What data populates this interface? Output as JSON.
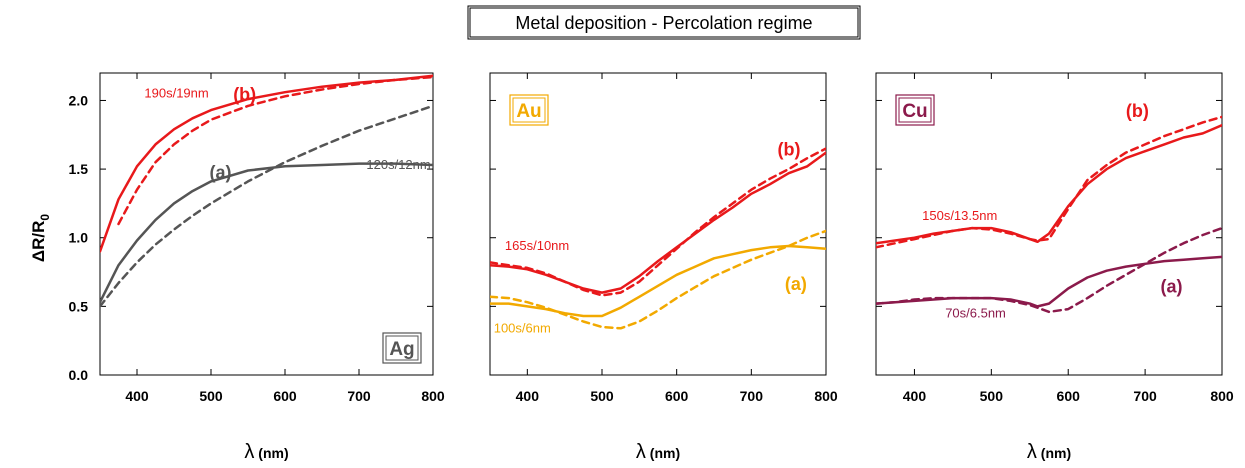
{
  "title": "Metal deposition - Percolation regime",
  "ylabel_main": "ΔR/R",
  "ylabel_sub": "0",
  "xlabel_symbol": "λ",
  "xlabel_unit": "(nm)",
  "chart_data": [
    {
      "type": "line",
      "panel_label": "Ag",
      "panel_color": "#555555",
      "xlim": [
        350,
        800
      ],
      "ylim": [
        0,
        2.2
      ],
      "xticks": [
        400,
        500,
        600,
        700,
        800
      ],
      "yticks": [
        0.0,
        0.5,
        1.0,
        1.5,
        2.0
      ],
      "yticklabels": [
        "0.0",
        "0.5",
        "1.0",
        "1.5",
        "2.0"
      ],
      "x": [
        350,
        375,
        400,
        425,
        450,
        475,
        500,
        550,
        600,
        650,
        700,
        750,
        800
      ],
      "series": [
        {
          "label": "(b)",
          "annotation": "190s/19nm",
          "color": "#e8191b",
          "style": "solid",
          "y": [
            0.9,
            1.28,
            1.52,
            1.68,
            1.79,
            1.87,
            1.93,
            2.01,
            2.06,
            2.1,
            2.13,
            2.15,
            2.18
          ]
        },
        {
          "label": "(b)",
          "color": "#e8191b",
          "style": "dashed",
          "y": [
            null,
            1.1,
            1.35,
            1.55,
            1.68,
            1.78,
            1.86,
            1.96,
            2.03,
            2.08,
            2.12,
            2.15,
            2.17
          ]
        },
        {
          "label": "(a)",
          "annotation": "120s/12nm",
          "color": "#555555",
          "style": "solid",
          "y": [
            0.53,
            0.8,
            0.98,
            1.13,
            1.25,
            1.34,
            1.41,
            1.49,
            1.52,
            1.53,
            1.54,
            1.54,
            1.53
          ]
        },
        {
          "label": "(a)",
          "color": "#555555",
          "style": "dashed",
          "y": [
            0.5,
            0.67,
            0.82,
            0.95,
            1.06,
            1.16,
            1.25,
            1.41,
            1.55,
            1.67,
            1.78,
            1.87,
            1.96
          ]
        }
      ],
      "annotations": [
        {
          "text": "190s/19nm",
          "x": 410,
          "y": 2.02,
          "color": "#e8191b"
        },
        {
          "text": "(b)",
          "x": 530,
          "y": 2.0,
          "color": "#e8191b",
          "bold": true
        },
        {
          "text": "(a)",
          "x": 498,
          "y": 1.43,
          "color": "#555555",
          "bold": true
        },
        {
          "text": "120s/12nm",
          "x": 710,
          "y": 1.5,
          "color": "#555555"
        }
      ]
    },
    {
      "type": "line",
      "panel_label": "Au",
      "panel_color": "#f2a900",
      "xlim": [
        350,
        800
      ],
      "ylim": [
        0,
        2.2
      ],
      "xticks": [
        400,
        500,
        600,
        700,
        800
      ],
      "yticks": [
        0.0,
        0.5,
        1.0,
        1.5,
        2.0
      ],
      "x": [
        350,
        375,
        400,
        425,
        450,
        475,
        500,
        525,
        550,
        575,
        600,
        625,
        650,
        675,
        700,
        725,
        750,
        775,
        800
      ],
      "series": [
        {
          "label": "(b)",
          "annotation": "165s/10nm",
          "color": "#e8191b",
          "style": "solid",
          "y": [
            0.8,
            0.79,
            0.77,
            0.73,
            0.68,
            0.63,
            0.6,
            0.63,
            0.72,
            0.83,
            0.93,
            1.03,
            1.13,
            1.22,
            1.32,
            1.39,
            1.47,
            1.52,
            1.62
          ]
        },
        {
          "label": "(b)",
          "color": "#e8191b",
          "style": "dashed",
          "y": [
            0.82,
            0.8,
            0.78,
            0.74,
            0.68,
            0.62,
            0.58,
            0.6,
            0.68,
            0.8,
            0.92,
            1.04,
            1.15,
            1.25,
            1.35,
            1.43,
            1.5,
            1.58,
            1.65
          ]
        },
        {
          "label": "(a)",
          "annotation": "100s/6nm",
          "color": "#f2a900",
          "style": "solid",
          "y": [
            0.52,
            0.52,
            0.5,
            0.48,
            0.45,
            0.43,
            0.43,
            0.49,
            0.57,
            0.65,
            0.73,
            0.79,
            0.85,
            0.88,
            0.91,
            0.93,
            0.94,
            0.93,
            0.92
          ]
        },
        {
          "label": "(a)",
          "color": "#f2a900",
          "style": "dashed",
          "y": [
            0.57,
            0.56,
            0.53,
            0.49,
            0.44,
            0.39,
            0.35,
            0.34,
            0.39,
            0.47,
            0.56,
            0.64,
            0.72,
            0.78,
            0.84,
            0.89,
            0.94,
            1.0,
            1.05
          ]
        }
      ],
      "annotations": [
        {
          "text": "165s/10nm",
          "x": 370,
          "y": 0.91,
          "color": "#e8191b"
        },
        {
          "text": "(b)",
          "x": 735,
          "y": 1.6,
          "color": "#e8191b",
          "bold": true
        },
        {
          "text": "(a)",
          "x": 745,
          "y": 0.62,
          "color": "#f2a900",
          "bold": true
        },
        {
          "text": "100s/6nm",
          "x": 355,
          "y": 0.31,
          "color": "#f2a900"
        }
      ]
    },
    {
      "type": "line",
      "panel_label": "Cu",
      "panel_color": "#8b1a4b",
      "xlim": [
        350,
        800
      ],
      "ylim": [
        0,
        2.2
      ],
      "xticks": [
        400,
        500,
        600,
        700,
        800
      ],
      "yticks": [
        0.0,
        0.5,
        1.0,
        1.5,
        2.0
      ],
      "x": [
        350,
        375,
        400,
        425,
        450,
        475,
        500,
        525,
        550,
        560,
        575,
        600,
        625,
        650,
        675,
        700,
        725,
        750,
        775,
        800
      ],
      "series": [
        {
          "label": "(b)",
          "annotation": "150s/13.5nm",
          "color": "#e8191b",
          "style": "solid",
          "y": [
            0.96,
            0.98,
            1.0,
            1.03,
            1.05,
            1.07,
            1.07,
            1.04,
            0.99,
            0.97,
            1.03,
            1.23,
            1.39,
            1.5,
            1.58,
            1.63,
            1.68,
            1.73,
            1.76,
            1.82
          ]
        },
        {
          "label": "(b)",
          "color": "#e8191b",
          "style": "dashed",
          "y": [
            0.93,
            0.96,
            0.99,
            1.02,
            1.05,
            1.07,
            1.06,
            1.03,
            0.99,
            0.98,
            0.99,
            1.21,
            1.42,
            1.53,
            1.62,
            1.68,
            1.74,
            1.79,
            1.84,
            1.88
          ]
        },
        {
          "label": "(a)",
          "annotation": "70s/6.5nm",
          "color": "#8b1a4b",
          "style": "solid",
          "y": [
            0.52,
            0.53,
            0.54,
            0.55,
            0.56,
            0.56,
            0.56,
            0.55,
            0.52,
            0.5,
            0.52,
            0.63,
            0.71,
            0.76,
            0.79,
            0.81,
            0.83,
            0.84,
            0.85,
            0.86
          ]
        },
        {
          "label": "(a)",
          "color": "#8b1a4b",
          "style": "dashed",
          "y": [
            0.52,
            0.53,
            0.55,
            0.56,
            0.56,
            0.56,
            0.56,
            0.54,
            0.51,
            0.49,
            0.46,
            0.48,
            0.56,
            0.65,
            0.73,
            0.81,
            0.89,
            0.96,
            1.02,
            1.07
          ]
        }
      ],
      "annotations": [
        {
          "text": "150s/13.5nm",
          "x": 410,
          "y": 1.13,
          "color": "#e8191b"
        },
        {
          "text": "(b)",
          "x": 675,
          "y": 1.88,
          "color": "#e8191b",
          "bold": true
        },
        {
          "text": "(a)",
          "x": 720,
          "y": 0.6,
          "color": "#8b1a4b",
          "bold": true
        },
        {
          "text": "70s/6.5nm",
          "x": 440,
          "y": 0.42,
          "color": "#8b1a4b"
        }
      ]
    }
  ]
}
